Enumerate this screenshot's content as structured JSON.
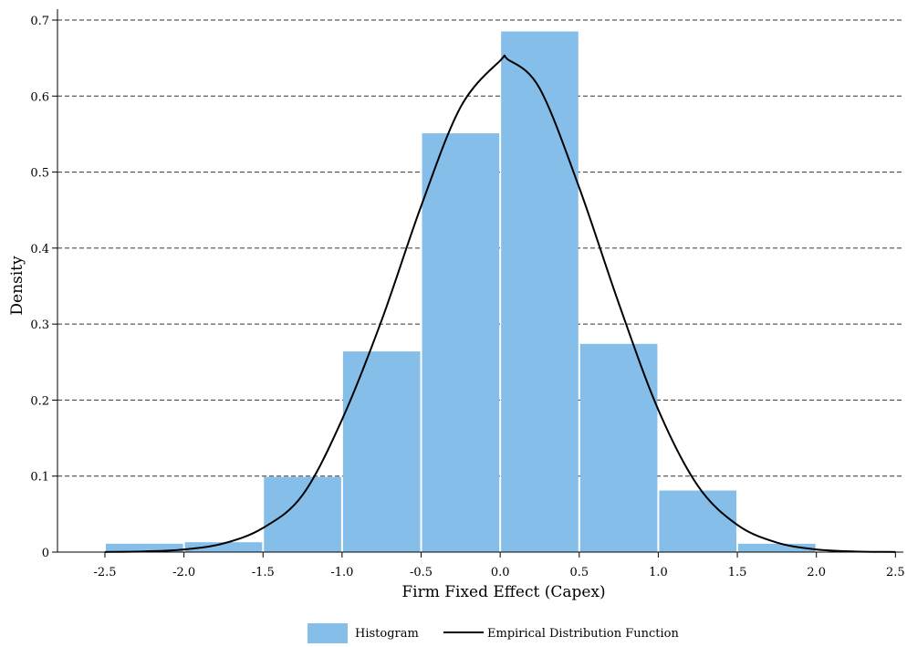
{
  "chart_data": {
    "type": "bar",
    "xlabel": "Firm Fixed Effect (Capex)",
    "ylabel": "Density",
    "xlim": [
      -2.8,
      2.55
    ],
    "ylim": [
      0,
      0.7
    ],
    "x_ticks": [
      -2.5,
      -2.0,
      -1.5,
      -1.0,
      -0.5,
      0.0,
      0.5,
      1.0,
      1.5,
      2.0,
      2.5
    ],
    "x_tick_labels": [
      "-2.5",
      "-2.0",
      "-1.5",
      "-1.0",
      "-0.5",
      "0.0",
      "0.5",
      "1.0",
      "1.5",
      "2.0",
      "2.5"
    ],
    "y_ticks": [
      0,
      0.1,
      0.2,
      0.3,
      0.4,
      0.5,
      0.6,
      0.7
    ],
    "y_tick_labels": [
      "0",
      "0.1",
      "0.2",
      "0.3",
      "0.4",
      "0.5",
      "0.6",
      "0.7"
    ],
    "grid": "horizontal dashed",
    "legend_position": "bottom-center",
    "histogram": {
      "name": "Histogram",
      "color": "#85BFE9",
      "bins": [
        {
          "start": -2.5,
          "end": -2.0,
          "density": 0.011
        },
        {
          "start": -2.0,
          "end": -1.5,
          "density": 0.013
        },
        {
          "start": -1.5,
          "end": -1.0,
          "density": 0.099
        },
        {
          "start": -1.0,
          "end": -0.5,
          "density": 0.264
        },
        {
          "start": -0.5,
          "end": 0.0,
          "density": 0.551
        },
        {
          "start": 0.0,
          "end": 0.5,
          "density": 0.685
        },
        {
          "start": 0.5,
          "end": 1.0,
          "density": 0.274
        },
        {
          "start": 1.0,
          "end": 1.5,
          "density": 0.081
        },
        {
          "start": 1.5,
          "end": 2.0,
          "density": 0.011
        }
      ]
    },
    "curve": {
      "name": "Empirical Distribution Function",
      "color": "#000000",
      "points": [
        [
          -2.5,
          0.0002
        ],
        [
          -2.25,
          0.0009
        ],
        [
          -2.0,
          0.0035
        ],
        [
          -1.75,
          0.0114
        ],
        [
          -1.5,
          0.0318
        ],
        [
          -1.25,
          0.0751
        ],
        [
          -1.0,
          0.1745
        ],
        [
          -0.75,
          0.3049
        ],
        [
          -0.5,
          0.4552
        ],
        [
          -0.25,
          0.5857
        ],
        [
          0.0,
          0.6466
        ],
        [
          0.05,
          0.648
        ],
        [
          0.25,
          0.61
        ],
        [
          0.5,
          0.4795
        ],
        [
          0.75,
          0.3273
        ],
        [
          1.0,
          0.1873
        ],
        [
          1.25,
          0.0873
        ],
        [
          1.5,
          0.0358
        ],
        [
          1.75,
          0.0125
        ],
        [
          2.0,
          0.0035
        ],
        [
          2.25,
          0.0008
        ],
        [
          2.5,
          0.0002
        ]
      ]
    }
  }
}
